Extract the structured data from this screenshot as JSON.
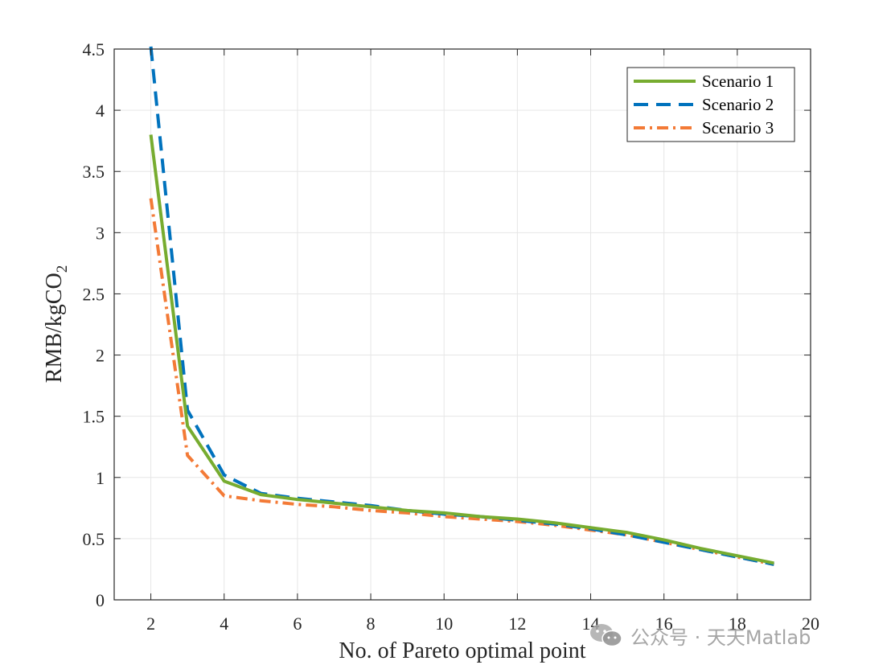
{
  "chart_data": {
    "type": "line",
    "title": "",
    "xlabel": "No. of Pareto optimal point",
    "ylabel_main": "RMB/kgCO",
    "ylabel_sub": "2",
    "xlim": [
      1,
      20
    ],
    "ylim": [
      0,
      4.5
    ],
    "xticks": [
      2,
      4,
      6,
      8,
      10,
      12,
      14,
      16,
      18,
      20
    ],
    "yticks": [
      0,
      0.5,
      1,
      1.5,
      2,
      2.5,
      3,
      3.5,
      4,
      4.5
    ],
    "grid": true,
    "legend_position": "top-right",
    "x": [
      2,
      3,
      4,
      5,
      6,
      7,
      8,
      9,
      10,
      11,
      12,
      13,
      14,
      15,
      16,
      17,
      18,
      19
    ],
    "series": [
      {
        "name": "Scenario 1",
        "color": "#77ac30",
        "style": "solid",
        "values": [
          3.8,
          1.42,
          0.97,
          0.86,
          0.82,
          0.79,
          0.76,
          0.73,
          0.71,
          0.68,
          0.66,
          0.63,
          0.59,
          0.55,
          0.49,
          0.42,
          0.36,
          0.3
        ]
      },
      {
        "name": "Scenario 2",
        "color": "#0072bd",
        "style": "dashed",
        "values": [
          4.52,
          1.55,
          1.02,
          0.87,
          0.83,
          0.8,
          0.77,
          0.73,
          0.7,
          0.68,
          0.65,
          0.62,
          0.58,
          0.53,
          0.47,
          0.41,
          0.35,
          0.29
        ]
      },
      {
        "name": "Scenario 3",
        "color": "#f37a36",
        "style": "dashdot",
        "values": [
          3.28,
          1.18,
          0.85,
          0.81,
          0.78,
          0.76,
          0.73,
          0.71,
          0.68,
          0.66,
          0.64,
          0.61,
          0.57,
          0.53,
          0.47,
          0.41,
          0.35,
          0.29
        ]
      }
    ]
  },
  "watermark": {
    "text": "公众号 · 天天Matlab",
    "icon": "wechat-icon"
  }
}
